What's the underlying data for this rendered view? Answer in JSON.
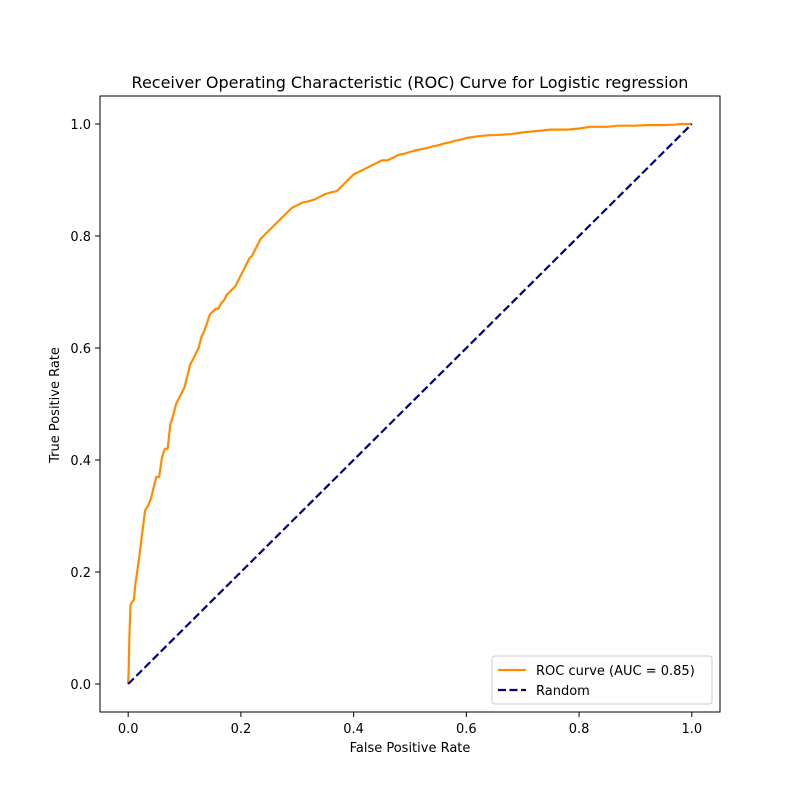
{
  "chart_data": {
    "type": "line",
    "title": "Receiver Operating Characteristic (ROC) Curve for Logistic regression",
    "xlabel": "False Positive Rate",
    "ylabel": "True Positive Rate",
    "xlim": [
      -0.05,
      1.05
    ],
    "ylim": [
      -0.05,
      1.05
    ],
    "xticks": [
      0.0,
      0.2,
      0.4,
      0.6,
      0.8,
      1.0
    ],
    "yticks": [
      0.0,
      0.2,
      0.4,
      0.6,
      0.8,
      1.0
    ],
    "xtick_labels": [
      "0.0",
      "0.2",
      "0.4",
      "0.6",
      "0.8",
      "1.0"
    ],
    "ytick_labels": [
      "0.0",
      "0.2",
      "0.4",
      "0.6",
      "0.8",
      "1.0"
    ],
    "grid": false,
    "legend_position": "lower-right",
    "series": [
      {
        "name": "ROC curve (AUC = 0.85)",
        "color": "#ff8c00",
        "style": "solid",
        "x": [
          0.0,
          0.001,
          0.002,
          0.004,
          0.006,
          0.01,
          0.013,
          0.016,
          0.02,
          0.025,
          0.03,
          0.033,
          0.036,
          0.04,
          0.045,
          0.05,
          0.055,
          0.06,
          0.065,
          0.07,
          0.075,
          0.077,
          0.08,
          0.085,
          0.09,
          0.095,
          0.1,
          0.105,
          0.11,
          0.115,
          0.12,
          0.125,
          0.13,
          0.135,
          0.14,
          0.145,
          0.15,
          0.155,
          0.16,
          0.165,
          0.17,
          0.175,
          0.18,
          0.185,
          0.19,
          0.195,
          0.2,
          0.205,
          0.21,
          0.215,
          0.22,
          0.225,
          0.23,
          0.235,
          0.24,
          0.245,
          0.25,
          0.255,
          0.26,
          0.265,
          0.27,
          0.28,
          0.29,
          0.3,
          0.31,
          0.32,
          0.33,
          0.34,
          0.35,
          0.36,
          0.37,
          0.38,
          0.39,
          0.395,
          0.4,
          0.41,
          0.42,
          0.43,
          0.44,
          0.45,
          0.46,
          0.47,
          0.48,
          0.49,
          0.5,
          0.51,
          0.52,
          0.53,
          0.54,
          0.55,
          0.56,
          0.57,
          0.58,
          0.59,
          0.6,
          0.62,
          0.64,
          0.65,
          0.68,
          0.7,
          0.73,
          0.75,
          0.78,
          0.8,
          0.82,
          0.85,
          0.87,
          0.9,
          0.92,
          0.95,
          0.97,
          0.98,
          0.99,
          1.0
        ],
        "y": [
          0.0,
          0.03,
          0.08,
          0.14,
          0.145,
          0.15,
          0.18,
          0.2,
          0.23,
          0.27,
          0.31,
          0.315,
          0.32,
          0.33,
          0.35,
          0.37,
          0.37,
          0.405,
          0.42,
          0.42,
          0.465,
          0.47,
          0.48,
          0.5,
          0.51,
          0.52,
          0.53,
          0.55,
          0.57,
          0.58,
          0.59,
          0.6,
          0.62,
          0.63,
          0.645,
          0.66,
          0.665,
          0.67,
          0.67,
          0.68,
          0.685,
          0.695,
          0.7,
          0.705,
          0.71,
          0.72,
          0.73,
          0.74,
          0.75,
          0.76,
          0.765,
          0.775,
          0.785,
          0.795,
          0.8,
          0.805,
          0.81,
          0.815,
          0.82,
          0.825,
          0.83,
          0.84,
          0.85,
          0.855,
          0.86,
          0.862,
          0.865,
          0.87,
          0.875,
          0.878,
          0.88,
          0.89,
          0.9,
          0.905,
          0.91,
          0.915,
          0.92,
          0.925,
          0.93,
          0.935,
          0.935,
          0.94,
          0.945,
          0.947,
          0.95,
          0.953,
          0.955,
          0.957,
          0.96,
          0.962,
          0.965,
          0.967,
          0.97,
          0.972,
          0.975,
          0.978,
          0.98,
          0.98,
          0.982,
          0.985,
          0.988,
          0.99,
          0.99,
          0.992,
          0.995,
          0.995,
          0.997,
          0.997,
          0.998,
          0.998,
          0.999,
          1.0,
          1.0,
          1.0
        ]
      },
      {
        "name": "Random",
        "color": "#000080",
        "style": "dashed",
        "x": [
          0.0,
          1.0
        ],
        "y": [
          0.0,
          1.0
        ]
      }
    ]
  }
}
